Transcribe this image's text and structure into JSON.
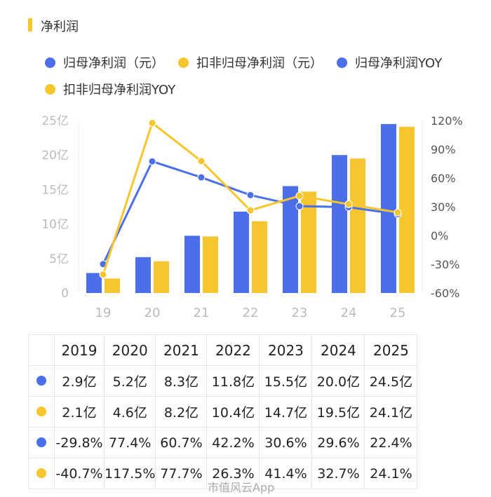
{
  "title": "净利润",
  "colors": {
    "blue": "#4b6fe8",
    "yellow": "#f7c52d"
  },
  "legend": [
    {
      "label": "归母净利润（元）",
      "color": "#4b6fe8"
    },
    {
      "label": "扣非归母净利润（元）",
      "color": "#f7c52d"
    },
    {
      "label": "归母净利润YOY",
      "color": "#4b6fe8"
    },
    {
      "label": "扣非归母净利润YOY",
      "color": "#f7c52d"
    }
  ],
  "chart_data": {
    "type": "bar",
    "categories": [
      "19",
      "20",
      "21",
      "22",
      "23",
      "24",
      "25"
    ],
    "series": [
      {
        "name": "归母净利润（元）",
        "kind": "bar",
        "axis": "left",
        "values": [
          2.9,
          5.2,
          8.3,
          11.8,
          15.5,
          20.0,
          24.5
        ]
      },
      {
        "name": "扣非归母净利润（元）",
        "kind": "bar",
        "axis": "left",
        "values": [
          2.1,
          4.6,
          8.2,
          10.4,
          14.7,
          19.5,
          24.1
        ]
      },
      {
        "name": "归母净利润YOY",
        "kind": "line",
        "axis": "right",
        "values": [
          -29.8,
          77.4,
          60.7,
          42.2,
          30.6,
          29.6,
          22.4
        ]
      },
      {
        "name": "扣非归母净利润YOY",
        "kind": "line",
        "axis": "right",
        "values": [
          -40.7,
          117.5,
          77.7,
          26.3,
          41.4,
          32.7,
          24.1
        ]
      }
    ],
    "y_left": {
      "ticks": [
        "0",
        "5亿",
        "10亿",
        "15亿",
        "20亿",
        "25亿"
      ],
      "range": [
        0,
        25
      ]
    },
    "y_right": {
      "ticks": [
        "-60%",
        "-30%",
        "0%",
        "30%",
        "60%",
        "90%",
        "120%"
      ],
      "range": [
        -60,
        120
      ]
    },
    "grid": false,
    "legend_position": "top"
  },
  "table": {
    "years": [
      "2019",
      "2020",
      "2021",
      "2022",
      "2023",
      "2024",
      "2025"
    ],
    "rows": [
      {
        "color": "#4b6fe8",
        "cells": [
          "2.9亿",
          "5.2亿",
          "8.3亿",
          "11.8亿",
          "15.5亿",
          "20.0亿",
          "24.5亿"
        ]
      },
      {
        "color": "#f7c52d",
        "cells": [
          "2.1亿",
          "4.6亿",
          "8.2亿",
          "10.4亿",
          "14.7亿",
          "19.5亿",
          "24.1亿"
        ]
      },
      {
        "color": "#4b6fe8",
        "cells": [
          "-29.8%",
          "77.4%",
          "60.7%",
          "42.2%",
          "30.6%",
          "29.6%",
          "22.4%"
        ]
      },
      {
        "color": "#f7c52d",
        "cells": [
          "-40.7%",
          "117.5%",
          "77.7%",
          "26.3%",
          "41.4%",
          "32.7%",
          "24.1%"
        ]
      }
    ]
  },
  "watermark": "市值风云App"
}
